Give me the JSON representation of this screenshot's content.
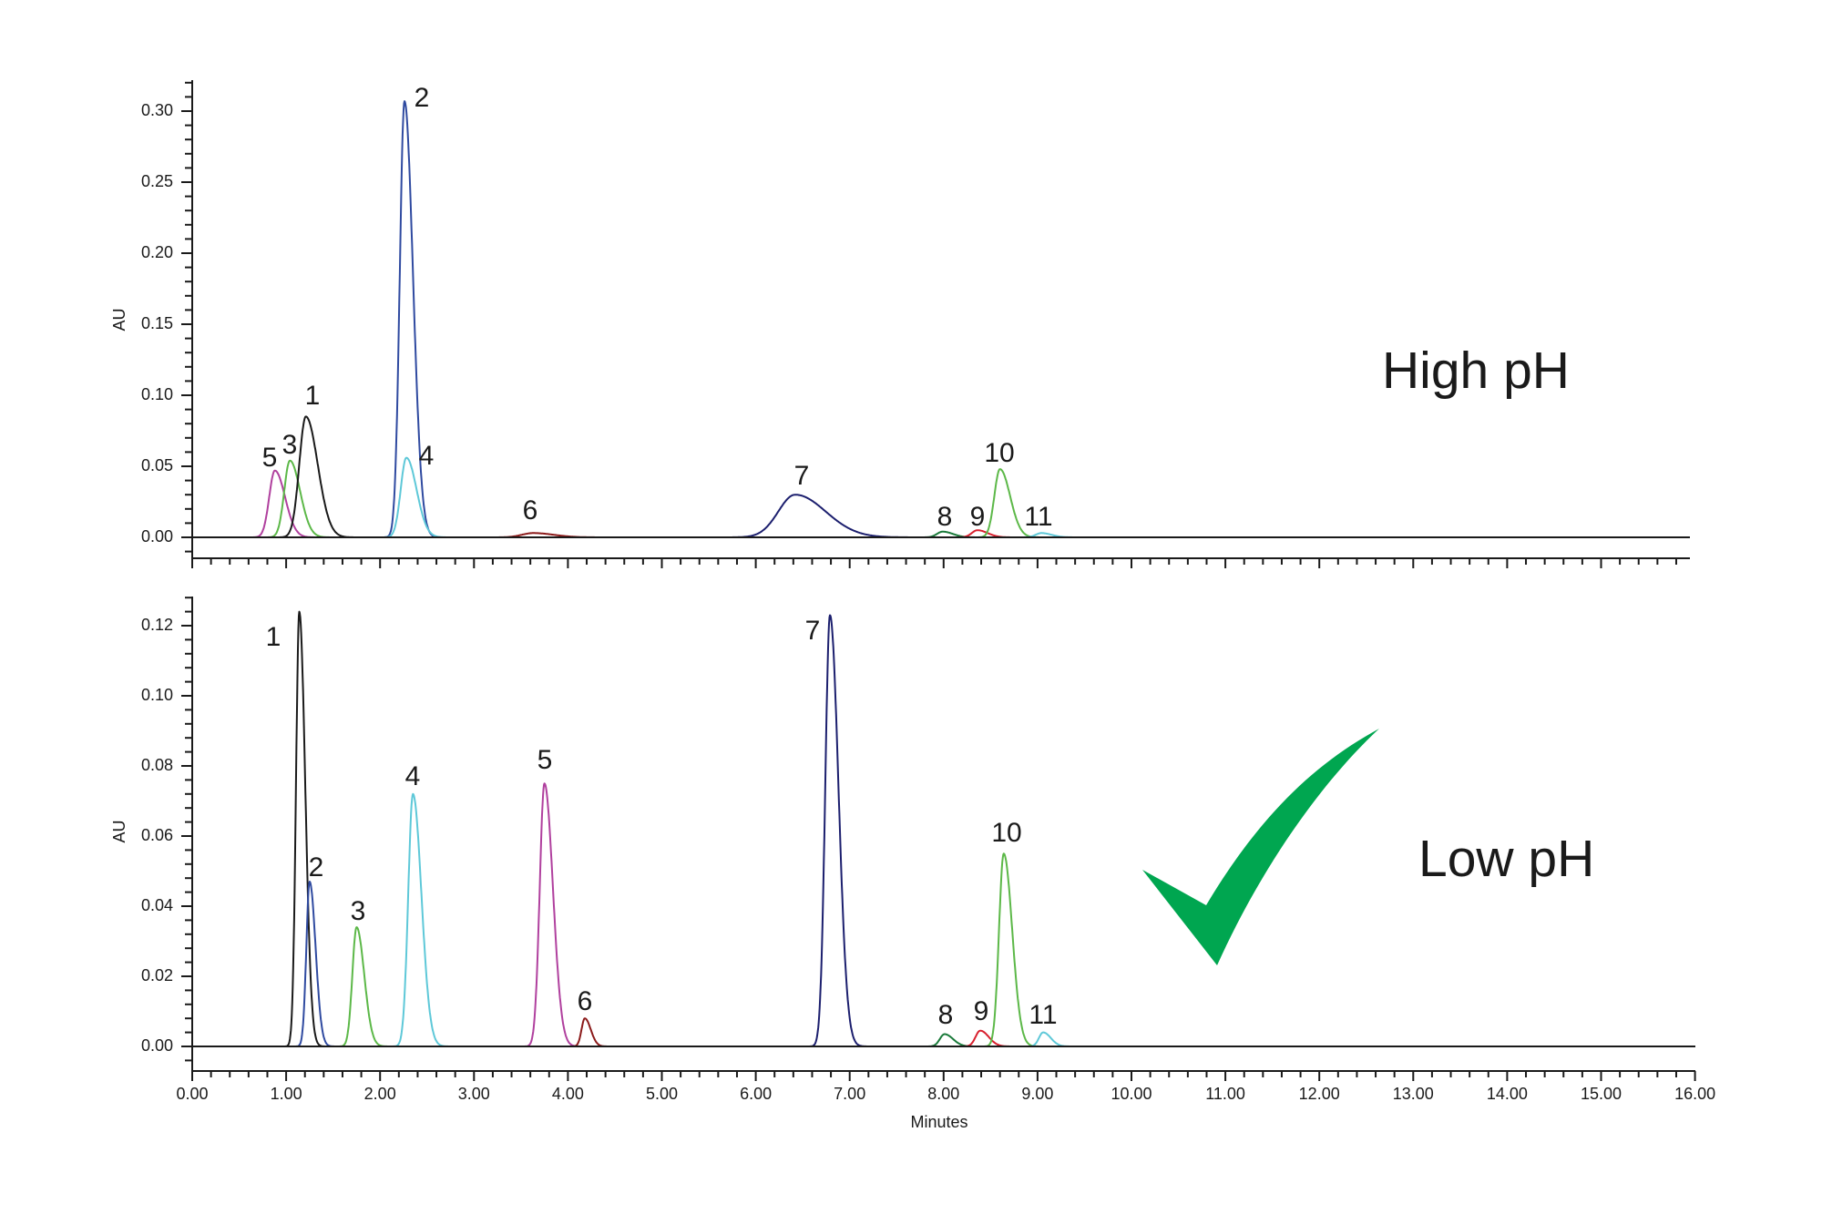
{
  "chart_data": [
    {
      "type": "line",
      "title": "High pH",
      "xlabel": "",
      "ylabel": "AU",
      "xlim": [
        0,
        16
      ],
      "ylim": [
        -0.015,
        0.32
      ],
      "yticks": [
        "0.00",
        "0.05",
        "0.10",
        "0.15",
        "0.20",
        "0.25",
        "0.30"
      ],
      "ytick_values": [
        0.0,
        0.05,
        0.1,
        0.15,
        0.2,
        0.25,
        0.3
      ],
      "x_tick_labels_shown": false,
      "grid": false,
      "peaks": [
        {
          "label": "5",
          "rt": 0.88,
          "height": 0.047,
          "color": "#b0409e"
        },
        {
          "label": "3",
          "rt": 1.04,
          "height": 0.054,
          "color": "#5cb848"
        },
        {
          "label": "1",
          "rt": 1.21,
          "height": 0.085,
          "color": "#1a1a1a"
        },
        {
          "label": "2",
          "rt": 2.26,
          "height": 0.307,
          "color": "#2f4aa0"
        },
        {
          "label": "4",
          "rt": 2.28,
          "height": 0.056,
          "color": "#5ec8d8"
        },
        {
          "label": "6",
          "rt": 3.63,
          "height": 0.003,
          "color": "#8b1a1a"
        },
        {
          "label": "7",
          "rt": 6.42,
          "height": 0.03,
          "color": "#1c1f6e"
        },
        {
          "label": "8",
          "rt": 7.99,
          "height": 0.004,
          "color": "#1a7a3a"
        },
        {
          "label": "9",
          "rt": 8.36,
          "height": 0.005,
          "color": "#d8202e"
        },
        {
          "label": "10",
          "rt": 8.6,
          "height": 0.048,
          "color": "#5cb848"
        },
        {
          "label": "11",
          "rt": 9.04,
          "height": 0.003,
          "color": "#5ec8d8"
        }
      ]
    },
    {
      "type": "line",
      "title": "Low pH",
      "xlabel": "Minutes",
      "ylabel": "AU",
      "xlim": [
        0,
        16
      ],
      "ylim": [
        -0.007,
        0.128
      ],
      "yticks": [
        "0.00",
        "0.02",
        "0.04",
        "0.06",
        "0.08",
        "0.10",
        "0.12"
      ],
      "ytick_values": [
        0.0,
        0.02,
        0.04,
        0.06,
        0.08,
        0.1,
        0.12
      ],
      "xticks": [
        "0.00",
        "1.00",
        "2.00",
        "3.00",
        "4.00",
        "5.00",
        "6.00",
        "7.00",
        "8.00",
        "9.00",
        "10.00",
        "11.00",
        "12.00",
        "13.00",
        "14.00",
        "15.00",
        "16.00"
      ],
      "grid": false,
      "annotation": "green checkmark",
      "peaks": [
        {
          "label": "1",
          "rt": 1.14,
          "height": 0.124,
          "color": "#1a1a1a"
        },
        {
          "label": "2",
          "rt": 1.25,
          "height": 0.047,
          "color": "#2f4aa0"
        },
        {
          "label": "3",
          "rt": 1.75,
          "height": 0.034,
          "color": "#5cb848"
        },
        {
          "label": "4",
          "rt": 2.35,
          "height": 0.072,
          "color": "#5ec8d8"
        },
        {
          "label": "5",
          "rt": 3.75,
          "height": 0.075,
          "color": "#b0409e"
        },
        {
          "label": "6",
          "rt": 4.18,
          "height": 0.008,
          "color": "#8b1a1a"
        },
        {
          "label": "7",
          "rt": 6.79,
          "height": 0.123,
          "color": "#1c1f6e"
        },
        {
          "label": "8",
          "rt": 8.01,
          "height": 0.0035,
          "color": "#1a7a3a"
        },
        {
          "label": "9",
          "rt": 8.39,
          "height": 0.0045,
          "color": "#d8202e"
        },
        {
          "label": "10",
          "rt": 8.64,
          "height": 0.055,
          "color": "#5cb848"
        },
        {
          "label": "11",
          "rt": 9.06,
          "height": 0.004,
          "color": "#5ec8d8"
        }
      ]
    }
  ],
  "panels": {
    "top": {
      "title": "High pH",
      "y_axis_label": "AU",
      "yticks": [
        "0.00",
        "0.05",
        "0.10",
        "0.15",
        "0.20",
        "0.25",
        "0.30"
      ],
      "peak_labels": [
        "5",
        "3",
        "1",
        "2",
        "4",
        "6",
        "7",
        "8",
        "9",
        "10",
        "11"
      ]
    },
    "bottom": {
      "title": "Low pH",
      "y_axis_label": "AU",
      "x_axis_label": "Minutes",
      "yticks": [
        "0.00",
        "0.02",
        "0.04",
        "0.06",
        "0.08",
        "0.10",
        "0.12"
      ],
      "xticks": [
        "0.00",
        "1.00",
        "2.00",
        "3.00",
        "4.00",
        "5.00",
        "6.00",
        "7.00",
        "8.00",
        "9.00",
        "10.00",
        "11.00",
        "12.00",
        "13.00",
        "14.00",
        "15.00",
        "16.00"
      ],
      "peak_labels": [
        "1",
        "2",
        "3",
        "4",
        "5",
        "6",
        "7",
        "8",
        "9",
        "10",
        "11"
      ]
    }
  },
  "colors": {
    "axis": "#1a1a1a",
    "checkmark": "#00a650"
  },
  "icons": {
    "checkmark": "checkmark-icon"
  }
}
